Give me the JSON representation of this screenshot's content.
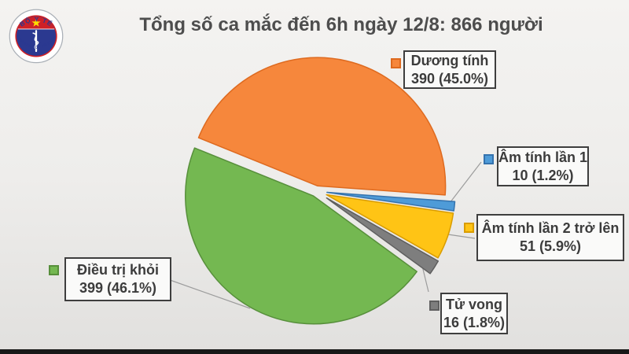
{
  "header": {
    "title": "Tổng số ca mắc đến 6h ngày 12/8: 866 người"
  },
  "logo": {
    "top_text": "BỘ Y TẾ",
    "bottom_text": "MINISTRY OF HEALTH",
    "colors": {
      "navy": "#2B3990",
      "red": "#CE2127",
      "star": "#FFDE00"
    }
  },
  "chart_data": {
    "type": "pie",
    "title": "Tổng số ca mắc đến 6h ngày 12/8: 866 người",
    "total": 866,
    "start_angle_deg": 292,
    "direction": "clockwise",
    "exploded": true,
    "legend_position": "callout-labels",
    "slices": [
      {
        "id": "duong-tinh",
        "label": "Dương tính",
        "value": 390,
        "pct": 45.0,
        "value_text": "390 (45.0%)",
        "color": "#F6873C",
        "border": "#DE6A1F",
        "explode": 7
      },
      {
        "id": "am-tinh-lan-1",
        "label": "Âm tính lần 1",
        "value": 10,
        "pct": 1.2,
        "value_text": "10 (1.2%)",
        "color": "#4E9BD8",
        "border": "#3573AE",
        "explode": 14
      },
      {
        "id": "am-tinh-lan-2",
        "label": "Âm tính lần 2 trở lên",
        "value": 51,
        "pct": 5.9,
        "value_text": "51 (5.9%)",
        "color": "#FFC415",
        "border": "#D99C00",
        "explode": 14
      },
      {
        "id": "tu-vong",
        "label": "Tử vong",
        "value": 16,
        "pct": 1.8,
        "value_text": "16 (1.8%)",
        "color": "#7E7E7E",
        "border": "#5F5F5F",
        "explode": 16
      },
      {
        "id": "dieu-tri-khoi",
        "label": "Điều trị khỏi",
        "value": 399,
        "pct": 46.1,
        "value_text": "399 (46.1%)",
        "color": "#74B851",
        "border": "#578F3B",
        "explode": 7
      }
    ]
  }
}
